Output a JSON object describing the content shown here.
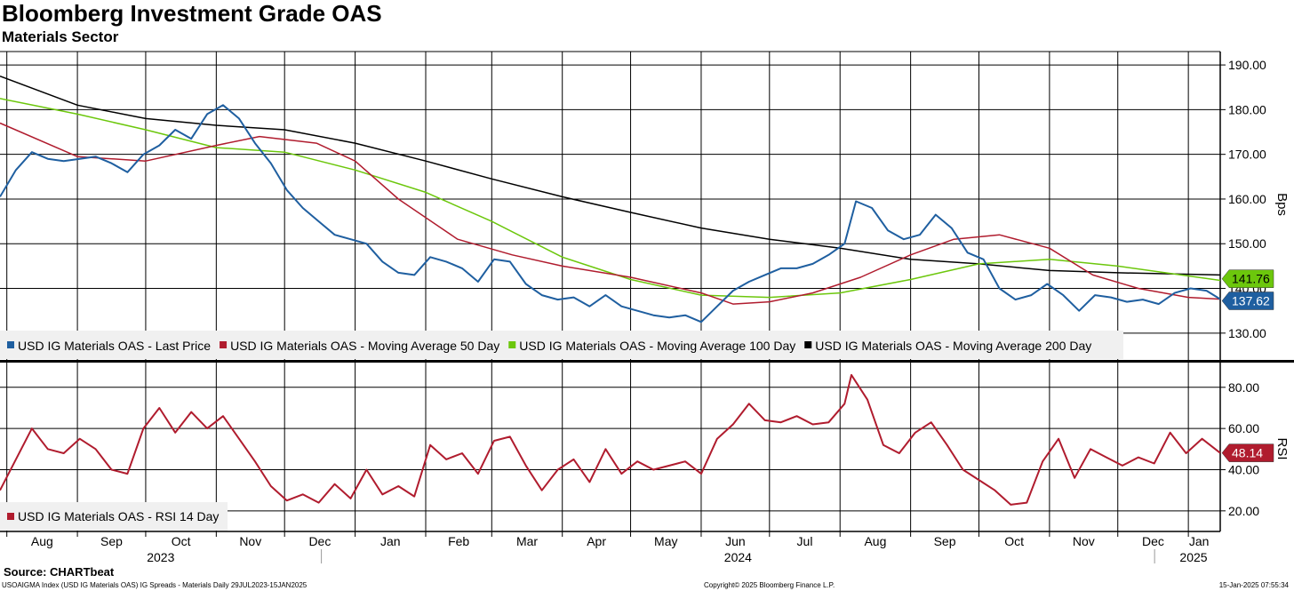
{
  "header": {
    "title": "Bloomberg Investment Grade OAS",
    "subtitle": "Materials Sector"
  },
  "footer": {
    "source": "Source: CHARTbeat",
    "description": "USOAIGMA Index (USD IG Materials OAS) IG Spreads - Materials  Daily 29JUL2023-15JAN2025",
    "copyright": "Copyright© 2025 Bloomberg Finance L.P.",
    "timestamp": "15-Jan-2025 07:55:34"
  },
  "colors": {
    "last_price": "#1f5fa0",
    "ma50": "#b01c2e",
    "ma100": "#6cc70c",
    "ma200": "#000000",
    "rsi": "#b01c2e",
    "grid": "#000000"
  },
  "chart_data": [
    {
      "type": "line",
      "panel": "upper",
      "ylabel": "Bps",
      "ylim": [
        124,
        193
      ],
      "yticks": [
        130,
        140,
        150,
        160,
        170,
        180,
        190
      ],
      "ytick_labels": [
        "130.00",
        "140.00",
        "150.00",
        "160.00",
        "170.00",
        "180.00",
        "190.00"
      ],
      "x_start": "2023-07-29",
      "x_end": "2025-01-15",
      "month_labels": [
        "Aug",
        "Sep",
        "Oct",
        "Nov",
        "Dec",
        "Jan",
        "Feb",
        "Mar",
        "Apr",
        "May",
        "Jun",
        "Jul",
        "Aug",
        "Sep",
        "Oct",
        "Nov",
        "Dec",
        "Jan"
      ],
      "year_labels": [
        "2023",
        "2024",
        "2025"
      ],
      "legend_position": "bottom-left",
      "series": [
        {
          "name": "USD IG Materials OAS - Last Price",
          "last_value": "137.62",
          "points": [
            [
              "2023-07-29",
              160.5
            ],
            [
              "2023-08-05",
              166.5
            ],
            [
              "2023-08-12",
              170.5
            ],
            [
              "2023-08-19",
              169.0
            ],
            [
              "2023-08-26",
              168.5
            ],
            [
              "2023-09-02",
              169.0
            ],
            [
              "2023-09-09",
              169.5
            ],
            [
              "2023-09-16",
              168.0
            ],
            [
              "2023-09-23",
              166.0
            ],
            [
              "2023-09-30",
              170.0
            ],
            [
              "2023-10-07",
              172.0
            ],
            [
              "2023-10-14",
              175.5
            ],
            [
              "2023-10-21",
              173.5
            ],
            [
              "2023-10-28",
              179.0
            ],
            [
              "2023-11-04",
              181.0
            ],
            [
              "2023-11-11",
              178.0
            ],
            [
              "2023-11-18",
              172.5
            ],
            [
              "2023-11-25",
              168.0
            ],
            [
              "2023-12-02",
              162.0
            ],
            [
              "2023-12-09",
              158.0
            ],
            [
              "2023-12-16",
              155.0
            ],
            [
              "2023-12-23",
              152.0
            ],
            [
              "2023-12-30",
              151.0
            ],
            [
              "2024-01-06",
              150.0
            ],
            [
              "2024-01-13",
              146.0
            ],
            [
              "2024-01-20",
              143.5
            ],
            [
              "2024-01-27",
              143.0
            ],
            [
              "2024-02-03",
              147.0
            ],
            [
              "2024-02-10",
              146.0
            ],
            [
              "2024-02-17",
              144.5
            ],
            [
              "2024-02-24",
              141.5
            ],
            [
              "2024-03-02",
              146.5
            ],
            [
              "2024-03-09",
              146.0
            ],
            [
              "2024-03-16",
              141.0
            ],
            [
              "2024-03-23",
              138.5
            ],
            [
              "2024-03-30",
              137.5
            ],
            [
              "2024-04-06",
              138.0
            ],
            [
              "2024-04-13",
              136.0
            ],
            [
              "2024-04-20",
              138.5
            ],
            [
              "2024-04-27",
              136.0
            ],
            [
              "2024-05-04",
              135.0
            ],
            [
              "2024-05-11",
              134.0
            ],
            [
              "2024-05-18",
              133.5
            ],
            [
              "2024-05-25",
              134.0
            ],
            [
              "2024-06-01",
              132.5
            ],
            [
              "2024-06-08",
              136.0
            ],
            [
              "2024-06-15",
              139.5
            ],
            [
              "2024-06-22",
              141.5
            ],
            [
              "2024-06-29",
              143.0
            ],
            [
              "2024-07-06",
              144.5
            ],
            [
              "2024-07-13",
              144.5
            ],
            [
              "2024-07-20",
              145.5
            ],
            [
              "2024-07-27",
              147.5
            ],
            [
              "2024-08-03",
              150.0
            ],
            [
              "2024-08-08",
              159.5
            ],
            [
              "2024-08-15",
              158.0
            ],
            [
              "2024-08-22",
              153.0
            ],
            [
              "2024-08-29",
              151.0
            ],
            [
              "2024-09-05",
              152.0
            ],
            [
              "2024-09-12",
              156.5
            ],
            [
              "2024-09-19",
              153.5
            ],
            [
              "2024-09-26",
              148.0
            ],
            [
              "2024-10-03",
              146.5
            ],
            [
              "2024-10-10",
              140.0
            ],
            [
              "2024-10-17",
              137.5
            ],
            [
              "2024-10-24",
              138.5
            ],
            [
              "2024-10-31",
              141.0
            ],
            [
              "2024-11-07",
              138.5
            ],
            [
              "2024-11-14",
              135.0
            ],
            [
              "2024-11-21",
              138.5
            ],
            [
              "2024-11-28",
              138.0
            ],
            [
              "2024-12-05",
              137.0
            ],
            [
              "2024-12-12",
              137.5
            ],
            [
              "2024-12-19",
              136.5
            ],
            [
              "2024-12-26",
              139.0
            ],
            [
              "2025-01-02",
              140.0
            ],
            [
              "2025-01-09",
              139.5
            ],
            [
              "2025-01-15",
              137.6
            ]
          ]
        },
        {
          "name": "USD IG Materials OAS - Moving Average 50 Day",
          "last_value": "",
          "points": [
            [
              "2023-07-29",
              177.0
            ],
            [
              "2023-09-01",
              169.5
            ],
            [
              "2023-10-01",
              168.5
            ],
            [
              "2023-11-01",
              172.0
            ],
            [
              "2023-11-20",
              174.0
            ],
            [
              "2023-12-15",
              172.5
            ],
            [
              "2024-01-01",
              168.5
            ],
            [
              "2024-01-20",
              160.0
            ],
            [
              "2024-02-15",
              151.0
            ],
            [
              "2024-03-10",
              147.5
            ],
            [
              "2024-04-01",
              145.0
            ],
            [
              "2024-05-01",
              142.5
            ],
            [
              "2024-06-01",
              139.0
            ],
            [
              "2024-06-15",
              136.5
            ],
            [
              "2024-07-01",
              137.0
            ],
            [
              "2024-07-20",
              139.0
            ],
            [
              "2024-08-10",
              142.5
            ],
            [
              "2024-09-01",
              147.5
            ],
            [
              "2024-09-20",
              151.0
            ],
            [
              "2024-10-10",
              152.0
            ],
            [
              "2024-11-01",
              149.0
            ],
            [
              "2024-11-20",
              143.0
            ],
            [
              "2024-12-10",
              140.0
            ],
            [
              "2025-01-01",
              138.0
            ],
            [
              "2025-01-15",
              137.6
            ]
          ]
        },
        {
          "name": "USD IG Materials OAS - Moving Average 100 Day",
          "last_value": "141.76",
          "points": [
            [
              "2023-07-29",
              182.5
            ],
            [
              "2023-09-01",
              179.0
            ],
            [
              "2023-10-01",
              175.5
            ],
            [
              "2023-11-01",
              171.5
            ],
            [
              "2023-12-01",
              170.5
            ],
            [
              "2024-01-01",
              166.5
            ],
            [
              "2024-02-01",
              161.5
            ],
            [
              "2024-03-01",
              155.0
            ],
            [
              "2024-04-01",
              147.0
            ],
            [
              "2024-05-01",
              142.0
            ],
            [
              "2024-06-01",
              138.5
            ],
            [
              "2024-07-01",
              138.0
            ],
            [
              "2024-08-01",
              139.0
            ],
            [
              "2024-09-01",
              142.0
            ],
            [
              "2024-10-01",
              145.5
            ],
            [
              "2024-11-01",
              146.5
            ],
            [
              "2024-12-01",
              145.0
            ],
            [
              "2025-01-15",
              141.8
            ]
          ]
        },
        {
          "name": "USD IG Materials OAS - Moving Average 200 Day",
          "last_value": "",
          "points": [
            [
              "2023-07-29",
              187.5
            ],
            [
              "2023-09-01",
              181.0
            ],
            [
              "2023-10-01",
              178.0
            ],
            [
              "2023-11-01",
              176.5
            ],
            [
              "2023-12-01",
              175.5
            ],
            [
              "2024-01-01",
              172.5
            ],
            [
              "2024-02-01",
              168.5
            ],
            [
              "2024-03-01",
              164.5
            ],
            [
              "2024-04-01",
              160.5
            ],
            [
              "2024-05-01",
              157.0
            ],
            [
              "2024-06-01",
              153.5
            ],
            [
              "2024-07-01",
              151.0
            ],
            [
              "2024-08-01",
              149.0
            ],
            [
              "2024-09-01",
              146.5
            ],
            [
              "2024-10-01",
              145.5
            ],
            [
              "2024-11-01",
              144.0
            ],
            [
              "2024-12-01",
              143.5
            ],
            [
              "2025-01-15",
              143.0
            ]
          ]
        }
      ]
    },
    {
      "type": "line",
      "panel": "lower",
      "ylabel": "RSI",
      "ylim": [
        10,
        92
      ],
      "yticks": [
        20,
        40,
        60,
        80
      ],
      "ytick_labels": [
        "20.00",
        "40.00",
        "60.00",
        "80.00"
      ],
      "legend_position": "bottom-left",
      "series": [
        {
          "name": "USD IG Materials OAS - RSI 14 Day",
          "last_value": "48.14",
          "points": [
            [
              "2023-07-29",
              30
            ],
            [
              "2023-08-05",
              45
            ],
            [
              "2023-08-12",
              60
            ],
            [
              "2023-08-19",
              50
            ],
            [
              "2023-08-26",
              48
            ],
            [
              "2023-09-02",
              55
            ],
            [
              "2023-09-09",
              50
            ],
            [
              "2023-09-16",
              40
            ],
            [
              "2023-09-23",
              38
            ],
            [
              "2023-09-30",
              60
            ],
            [
              "2023-10-07",
              70
            ],
            [
              "2023-10-14",
              58
            ],
            [
              "2023-10-21",
              68
            ],
            [
              "2023-10-28",
              60
            ],
            [
              "2023-11-04",
              66
            ],
            [
              "2023-11-11",
              55
            ],
            [
              "2023-11-18",
              44
            ],
            [
              "2023-11-25",
              32
            ],
            [
              "2023-12-02",
              25
            ],
            [
              "2023-12-09",
              28
            ],
            [
              "2023-12-16",
              24
            ],
            [
              "2023-12-23",
              33
            ],
            [
              "2023-12-30",
              26
            ],
            [
              "2024-01-06",
              40
            ],
            [
              "2024-01-13",
              28
            ],
            [
              "2024-01-20",
              32
            ],
            [
              "2024-01-27",
              27
            ],
            [
              "2024-02-03",
              52
            ],
            [
              "2024-02-10",
              45
            ],
            [
              "2024-02-17",
              48
            ],
            [
              "2024-02-24",
              38
            ],
            [
              "2024-03-02",
              54
            ],
            [
              "2024-03-09",
              56
            ],
            [
              "2024-03-16",
              42
            ],
            [
              "2024-03-23",
              30
            ],
            [
              "2024-03-30",
              40
            ],
            [
              "2024-04-06",
              45
            ],
            [
              "2024-04-13",
              34
            ],
            [
              "2024-04-20",
              50
            ],
            [
              "2024-04-27",
              38
            ],
            [
              "2024-05-04",
              44
            ],
            [
              "2024-05-11",
              40
            ],
            [
              "2024-05-18",
              42
            ],
            [
              "2024-05-25",
              44
            ],
            [
              "2024-06-01",
              38
            ],
            [
              "2024-06-08",
              55
            ],
            [
              "2024-06-15",
              62
            ],
            [
              "2024-06-22",
              72
            ],
            [
              "2024-06-29",
              64
            ],
            [
              "2024-07-06",
              63
            ],
            [
              "2024-07-13",
              66
            ],
            [
              "2024-07-20",
              62
            ],
            [
              "2024-07-27",
              63
            ],
            [
              "2024-08-03",
              72
            ],
            [
              "2024-08-06",
              86
            ],
            [
              "2024-08-13",
              74
            ],
            [
              "2024-08-20",
              52
            ],
            [
              "2024-08-27",
              48
            ],
            [
              "2024-09-03",
              58
            ],
            [
              "2024-09-10",
              63
            ],
            [
              "2024-09-17",
              52
            ],
            [
              "2024-09-24",
              40
            ],
            [
              "2024-10-01",
              35
            ],
            [
              "2024-10-08",
              30
            ],
            [
              "2024-10-15",
              23
            ],
            [
              "2024-10-22",
              24
            ],
            [
              "2024-10-29",
              44
            ],
            [
              "2024-11-05",
              55
            ],
            [
              "2024-11-12",
              36
            ],
            [
              "2024-11-19",
              50
            ],
            [
              "2024-11-26",
              46
            ],
            [
              "2024-12-03",
              42
            ],
            [
              "2024-12-10",
              46
            ],
            [
              "2024-12-17",
              43
            ],
            [
              "2024-12-24",
              58
            ],
            [
              "2024-12-31",
              48
            ],
            [
              "2025-01-07",
              55
            ],
            [
              "2025-01-15",
              48.1
            ]
          ]
        }
      ]
    }
  ]
}
